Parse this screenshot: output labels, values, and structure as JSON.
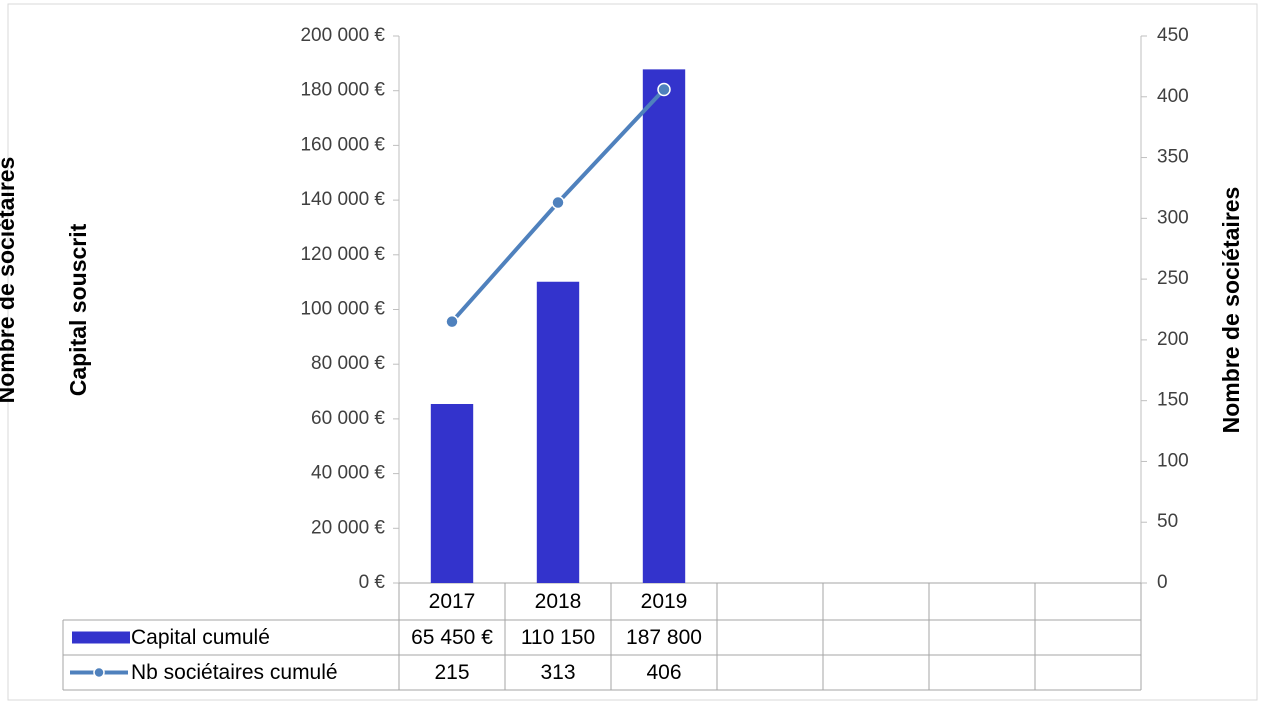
{
  "chart_data": {
    "type": "bar_line",
    "ylabel": "Capital souscrit",
    "y2label": "Nombre de sociétaires",
    "categories": [
      "2017",
      "2018",
      "2019",
      null,
      null,
      null,
      null
    ],
    "series": [
      {
        "name": "Capital cumulé",
        "type": "bar",
        "color": "#3333cc",
        "values": [
          65450,
          110150,
          187800,
          null,
          null,
          null,
          null
        ],
        "value_labels": [
          "65 450 €",
          "110 150",
          "187 800",
          null,
          null,
          null,
          null
        ]
      },
      {
        "name": "Nb sociétaires cumulé",
        "type": "line",
        "axis": "y2",
        "color": "#4f81bd",
        "values": [
          215,
          313,
          406,
          null,
          null,
          null,
          null
        ]
      }
    ],
    "ylim": [
      0,
      200000
    ],
    "yticks": [
      {
        "value": 0,
        "label": "0 €"
      },
      {
        "value": 20000,
        "label": "20 000 €"
      },
      {
        "value": 40000,
        "label": "40 000 €"
      },
      {
        "value": 60000,
        "label": "60 000 €"
      },
      {
        "value": 80000,
        "label": "80 000 €"
      },
      {
        "value": 100000,
        "label": "100 000 €"
      },
      {
        "value": 120000,
        "label": "120 000 €"
      },
      {
        "value": 140000,
        "label": "140 000 €"
      },
      {
        "value": 160000,
        "label": "160 000 €"
      },
      {
        "value": 180000,
        "label": "180 000 €"
      },
      {
        "value": 200000,
        "label": "200 000 €"
      }
    ],
    "y2lim": [
      0,
      450
    ],
    "y2ticks": [
      0,
      50,
      100,
      150,
      200,
      250,
      300,
      350,
      400,
      450
    ],
    "grid": false
  }
}
